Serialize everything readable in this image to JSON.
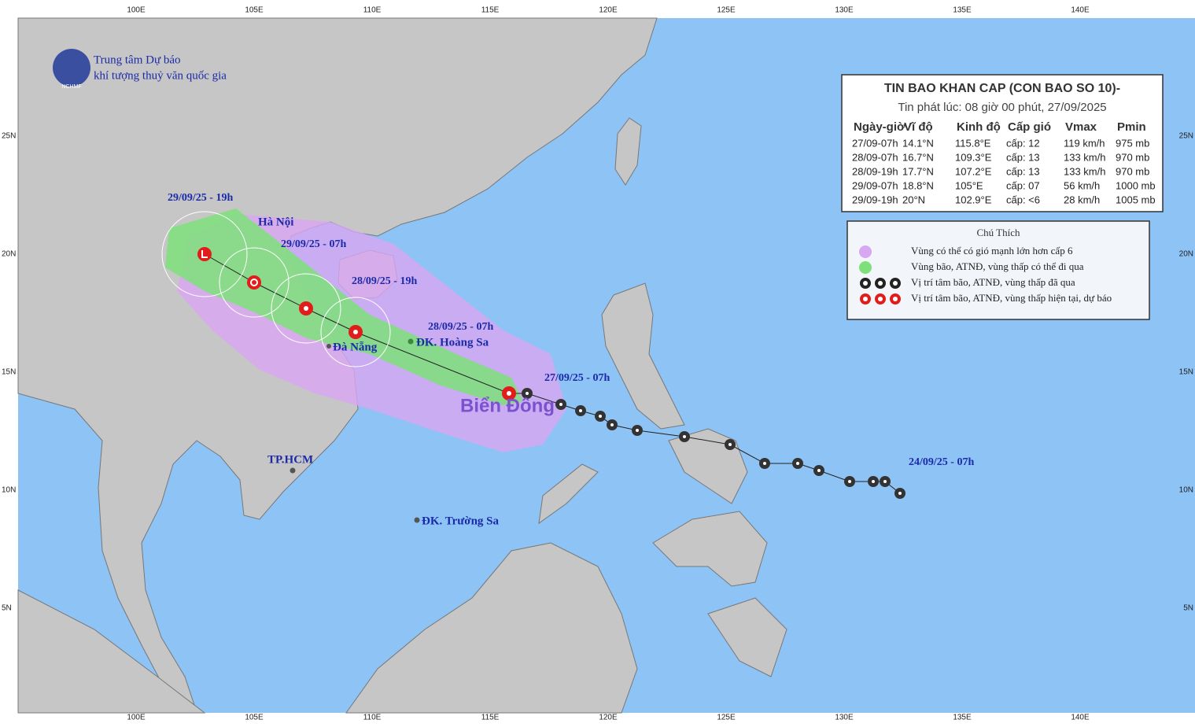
{
  "agency": {
    "line1": "Trung tâm Dự báo",
    "line2": "khí tượng thuỷ văn quốc gia",
    "logo": "NCHMF"
  },
  "bulletin": {
    "title": "TIN BAO KHAN CAP (CON BAO SO 10)-",
    "issued": "Tin phát lúc: 08 giờ 00 phút, 27/09/2025",
    "columns": [
      "Ngày-giờ",
      "Vĩ độ",
      "Kinh độ",
      "Cấp gió",
      "Vmax",
      "Pmin"
    ],
    "rows": [
      [
        "27/09-07h",
        "14.1°N",
        "115.8°E",
        "cấp: 12",
        "119 km/h",
        "975 mb"
      ],
      [
        "28/09-07h",
        "16.7°N",
        "109.3°E",
        "cấp: 13",
        "133 km/h",
        "970 mb"
      ],
      [
        "28/09-19h",
        "17.7°N",
        "107.2°E",
        "cấp: 13",
        "133 km/h",
        "970 mb"
      ],
      [
        "29/09-07h",
        "18.8°N",
        "105°E",
        "cấp: 07",
        "56 km/h",
        "1000 mb"
      ],
      [
        "29/09-19h",
        "20°N",
        "102.9°E",
        "cấp: <6",
        "28 km/h",
        "1005 mb"
      ]
    ]
  },
  "legend": {
    "title": "Chú Thích",
    "items": [
      "Vùng có thể có gió mạnh lớn hơn cấp 6",
      "Vùng bão, ATNĐ, vùng thấp có thể đi qua",
      "Vị trí tâm bão, ATNĐ, vùng thấp đã qua",
      "Vị trí tâm bão, ATNĐ, vùng thấp hiện tại, dự báo"
    ]
  },
  "map_labels": {
    "places": [
      "Hà Nội",
      "Đà Nẵng",
      "ĐK. Hoàng Sa",
      "TP.HCM",
      "ĐK. Trường Sa",
      "Biển Đông"
    ],
    "times": [
      "29/09/25 - 19h",
      "29/09/25 - 07h",
      "28/09/25 - 19h",
      "28/09/25 - 07h",
      "27/09/25 - 07h",
      "24/09/25 - 07h"
    ]
  },
  "axes": {
    "lon": [
      "100E",
      "105E",
      "110E",
      "115E",
      "120E",
      "125E",
      "130E",
      "135E",
      "140E"
    ],
    "lat": [
      "25N",
      "20N",
      "15N",
      "10N",
      "5N"
    ]
  }
}
